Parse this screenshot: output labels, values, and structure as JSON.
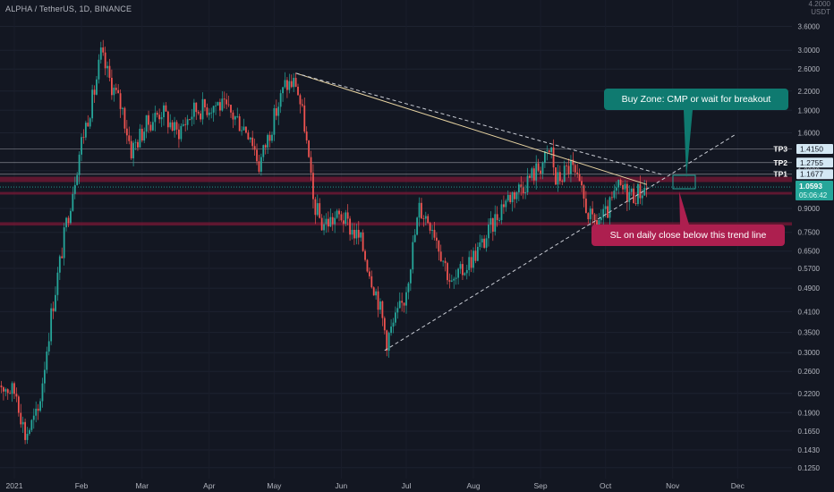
{
  "header": {
    "symbol_line": "ALPHA / TetherUS, 1D, BINANCE",
    "currency_label": "USDT",
    "cut_top_label": "4.2000"
  },
  "colors": {
    "background": "#131722",
    "up": "#26a69a",
    "down": "#ef5350",
    "trendline": "#e8d4a2",
    "support_zone": "#7a1836",
    "buy_callout": "#0f7a70",
    "sl_callout": "#ad1f4f",
    "current_price": "#26a69a"
  },
  "annotations": {
    "buy_zone": "Buy Zone: CMP or wait for breakout",
    "stop_loss": "SL on daily close below this trend line"
  },
  "chart_data": {
    "type": "candlestick",
    "title": "ALPHA / TetherUS, 1D, BINANCE",
    "y_scale": "log",
    "ylim": [
      0.115,
      4.4
    ],
    "y_ticks": [
      "3.6000",
      "3.0000",
      "2.6000",
      "2.2000",
      "1.9000",
      "1.6000",
      "1.2000",
      "0.9000",
      "0.7500",
      "0.6500",
      "0.5700",
      "0.4900",
      "0.4100",
      "0.3500",
      "0.3000",
      "0.2600",
      "0.2200",
      "0.1900",
      "0.1650",
      "0.1430",
      "0.1250"
    ],
    "x_ticks": [
      "2021",
      "Feb",
      "Mar",
      "Apr",
      "May",
      "Jun",
      "Jul",
      "Aug",
      "Sep",
      "Oct",
      "Nov",
      "Dec"
    ],
    "targets": [
      {
        "name": "TP3",
        "value": "1.4150"
      },
      {
        "name": "TP2",
        "value": "1.2755"
      },
      {
        "name": "TP1",
        "value": "1.1677"
      }
    ],
    "current_price": "1.0593",
    "countdown": "05:06:42",
    "support_zones": [
      [
        1.1,
        1.145
      ],
      [
        1.0,
        1.02
      ],
      [
        0.79,
        0.81
      ]
    ],
    "trendlines": [
      {
        "kind": "solid",
        "from": [
          "2021-05-11",
          2.52
        ],
        "to": [
          "2021-10-20",
          1.08
        ]
      },
      {
        "kind": "dashed",
        "from": [
          "2021-05-11",
          2.52
        ],
        "to": [
          "2021-10-28",
          1.16
        ]
      },
      {
        "kind": "dashed",
        "from": [
          "2021-06-21",
          0.305
        ],
        "to": [
          "2021-11-30",
          1.58
        ]
      }
    ],
    "key_price_path": [
      [
        "2020-12-24",
        0.24
      ],
      [
        "2021-01-02",
        0.22
      ],
      [
        "2021-01-06",
        0.16
      ],
      [
        "2021-01-12",
        0.19
      ],
      [
        "2021-01-18",
        0.4
      ],
      [
        "2021-01-25",
        0.8
      ],
      [
        "2021-02-01",
        1.5
      ],
      [
        "2021-02-07",
        2.2
      ],
      [
        "2021-02-10",
        2.9
      ],
      [
        "2021-02-14",
        2.4
      ],
      [
        "2021-02-20",
        1.9
      ],
      [
        "2021-02-24",
        1.4
      ],
      [
        "2021-03-03",
        1.7
      ],
      [
        "2021-03-10",
        1.9
      ],
      [
        "2021-03-17",
        1.6
      ],
      [
        "2021-03-25",
        1.9
      ],
      [
        "2021-04-05",
        2.0
      ],
      [
        "2021-04-13",
        1.8
      ],
      [
        "2021-04-20",
        1.6
      ],
      [
        "2021-04-24",
        1.25
      ],
      [
        "2021-05-01",
        1.8
      ],
      [
        "2021-05-06",
        2.3
      ],
      [
        "2021-05-11",
        2.35
      ],
      [
        "2021-05-15",
        1.7
      ],
      [
        "2021-05-19",
        0.95
      ],
      [
        "2021-05-23",
        0.8
      ],
      [
        "2021-06-01",
        0.85
      ],
      [
        "2021-06-10",
        0.7
      ],
      [
        "2021-06-18",
        0.45
      ],
      [
        "2021-06-22",
        0.33
      ],
      [
        "2021-06-30",
        0.45
      ],
      [
        "2021-07-07",
        0.9
      ],
      [
        "2021-07-13",
        0.8
      ],
      [
        "2021-07-22",
        0.5
      ],
      [
        "2021-07-30",
        0.6
      ],
      [
        "2021-08-06",
        0.7
      ],
      [
        "2021-08-15",
        0.95
      ],
      [
        "2021-08-22",
        1.05
      ],
      [
        "2021-08-30",
        1.2
      ],
      [
        "2021-09-06",
        1.4
      ],
      [
        "2021-09-08",
        1.1
      ],
      [
        "2021-09-15",
        1.25
      ],
      [
        "2021-09-20",
        1.0
      ],
      [
        "2021-09-25",
        0.8
      ],
      [
        "2021-10-01",
        0.85
      ],
      [
        "2021-10-07",
        1.05
      ],
      [
        "2021-10-14",
        1.0
      ],
      [
        "2021-10-20",
        1.06
      ]
    ]
  }
}
